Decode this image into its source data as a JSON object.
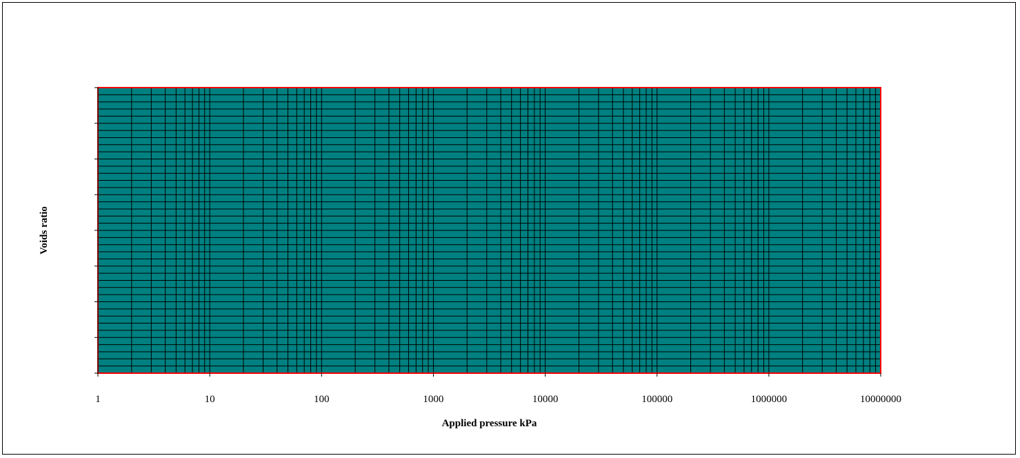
{
  "chart_data": {
    "type": "scatter",
    "title": "",
    "xlabel": "Applied pressure kPa",
    "ylabel": "Voids ratio",
    "x_scale": "log",
    "xlim": [
      1,
      10000000
    ],
    "x_tick_labels": [
      "1",
      "10",
      "100",
      "1000",
      "10000",
      "100000",
      "1000000",
      "10000000"
    ],
    "y_tick_labels": [],
    "y_major_tick_count": 8,
    "y_minor_gridline_count": 40,
    "grid": true,
    "series": [],
    "colors": {
      "plot_area": "#008080",
      "gridlines": "#000000",
      "plot_border": "#ff0000",
      "axis": "#000000"
    }
  }
}
